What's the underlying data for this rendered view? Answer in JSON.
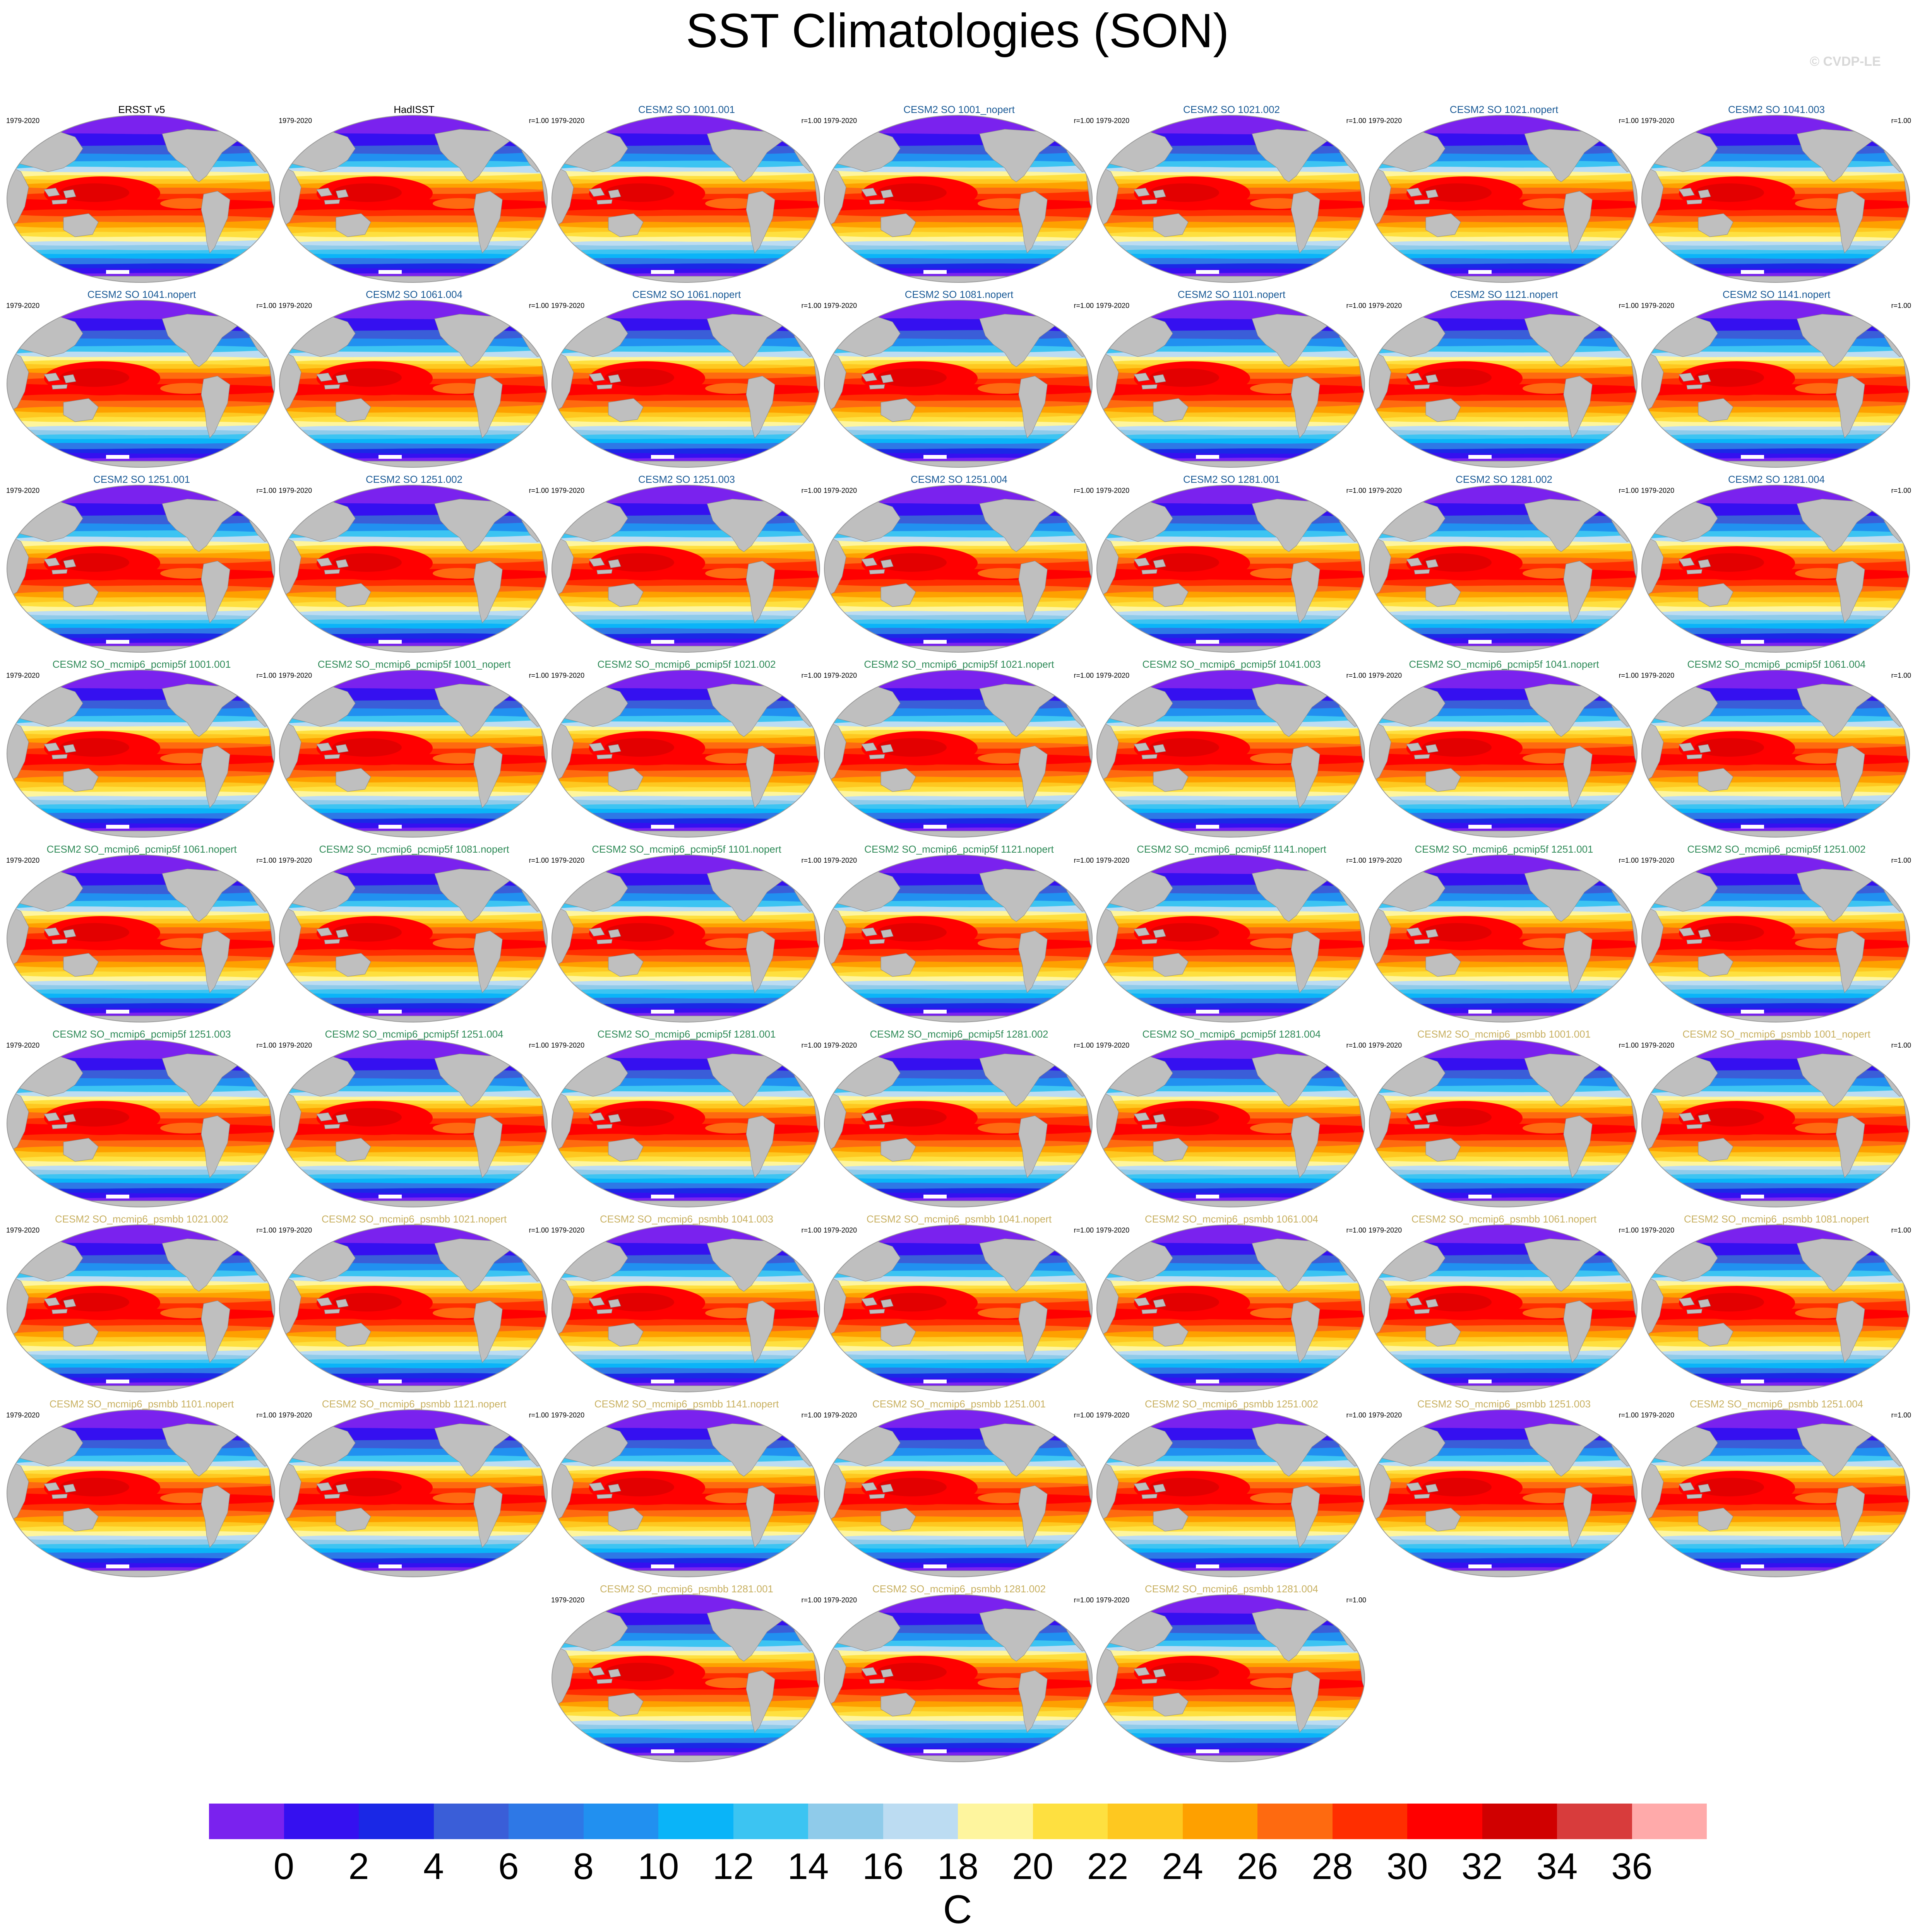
{
  "title": "SST Climatologies (SON)",
  "watermark": "© CVDP-LE",
  "period_label": "1979-2020",
  "corr_label": "r=1.00",
  "colors": {
    "obs_name": "#000000",
    "group1_name": "#1a5a96",
    "group2_name": "#2e8a57",
    "group3_name": "#c8b060",
    "land": "#bfbfbf",
    "ice": "#ffffff"
  },
  "panels": [
    {
      "name": "ERSST v5",
      "group": "obs",
      "corr": false
    },
    {
      "name": "HadISST",
      "group": "obs",
      "corr": true
    },
    {
      "name": "CESM2 SO 1001.001",
      "group": "group1",
      "corr": true
    },
    {
      "name": "CESM2 SO 1001_nopert",
      "group": "group1",
      "corr": true
    },
    {
      "name": "CESM2 SO 1021.002",
      "group": "group1",
      "corr": true
    },
    {
      "name": "CESM2 SO 1021.nopert",
      "group": "group1",
      "corr": true
    },
    {
      "name": "CESM2 SO 1041.003",
      "group": "group1",
      "corr": true
    },
    {
      "name": "CESM2 SO 1041.nopert",
      "group": "group1",
      "corr": true
    },
    {
      "name": "CESM2 SO 1061.004",
      "group": "group1",
      "corr": true
    },
    {
      "name": "CESM2 SO 1061.nopert",
      "group": "group1",
      "corr": true
    },
    {
      "name": "CESM2 SO 1081.nopert",
      "group": "group1",
      "corr": true
    },
    {
      "name": "CESM2 SO 1101.nopert",
      "group": "group1",
      "corr": true
    },
    {
      "name": "CESM2 SO 1121.nopert",
      "group": "group1",
      "corr": true
    },
    {
      "name": "CESM2 SO 1141.nopert",
      "group": "group1",
      "corr": true
    },
    {
      "name": "CESM2 SO 1251.001",
      "group": "group1",
      "corr": true
    },
    {
      "name": "CESM2 SO 1251.002",
      "group": "group1",
      "corr": true
    },
    {
      "name": "CESM2 SO 1251.003",
      "group": "group1",
      "corr": true
    },
    {
      "name": "CESM2 SO 1251.004",
      "group": "group1",
      "corr": true
    },
    {
      "name": "CESM2 SO 1281.001",
      "group": "group1",
      "corr": true
    },
    {
      "name": "CESM2 SO 1281.002",
      "group": "group1",
      "corr": true
    },
    {
      "name": "CESM2 SO 1281.004",
      "group": "group1",
      "corr": true
    },
    {
      "name": "CESM2 SO_mcmip6_pcmip5f 1001.001",
      "group": "group2",
      "corr": true
    },
    {
      "name": "CESM2 SO_mcmip6_pcmip5f 1001_nopert",
      "group": "group2",
      "corr": true
    },
    {
      "name": "CESM2 SO_mcmip6_pcmip5f 1021.002",
      "group": "group2",
      "corr": true
    },
    {
      "name": "CESM2 SO_mcmip6_pcmip5f 1021.nopert",
      "group": "group2",
      "corr": true
    },
    {
      "name": "CESM2 SO_mcmip6_pcmip5f 1041.003",
      "group": "group2",
      "corr": true
    },
    {
      "name": "CESM2 SO_mcmip6_pcmip5f 1041.nopert",
      "group": "group2",
      "corr": true
    },
    {
      "name": "CESM2 SO_mcmip6_pcmip5f 1061.004",
      "group": "group2",
      "corr": true
    },
    {
      "name": "CESM2 SO_mcmip6_pcmip5f 1061.nopert",
      "group": "group2",
      "corr": true
    },
    {
      "name": "CESM2 SO_mcmip6_pcmip5f 1081.nopert",
      "group": "group2",
      "corr": true
    },
    {
      "name": "CESM2 SO_mcmip6_pcmip5f 1101.nopert",
      "group": "group2",
      "corr": true
    },
    {
      "name": "CESM2 SO_mcmip6_pcmip5f 1121.nopert",
      "group": "group2",
      "corr": true
    },
    {
      "name": "CESM2 SO_mcmip6_pcmip5f 1141.nopert",
      "group": "group2",
      "corr": true
    },
    {
      "name": "CESM2 SO_mcmip6_pcmip5f 1251.001",
      "group": "group2",
      "corr": true
    },
    {
      "name": "CESM2 SO_mcmip6_pcmip5f 1251.002",
      "group": "group2",
      "corr": true
    },
    {
      "name": "CESM2 SO_mcmip6_pcmip5f 1251.003",
      "group": "group2",
      "corr": true
    },
    {
      "name": "CESM2 SO_mcmip6_pcmip5f 1251.004",
      "group": "group2",
      "corr": true
    },
    {
      "name": "CESM2 SO_mcmip6_pcmip5f 1281.001",
      "group": "group2",
      "corr": true
    },
    {
      "name": "CESM2 SO_mcmip6_pcmip5f 1281.002",
      "group": "group2",
      "corr": true
    },
    {
      "name": "CESM2 SO_mcmip6_pcmip5f 1281.004",
      "group": "group2",
      "corr": true
    },
    {
      "name": "CESM2 SO_mcmip6_psmbb 1001.001",
      "group": "group3",
      "corr": true
    },
    {
      "name": "CESM2 SO_mcmip6_psmbb 1001_nopert",
      "group": "group3",
      "corr": true
    },
    {
      "name": "CESM2 SO_mcmip6_psmbb 1021.002",
      "group": "group3",
      "corr": true
    },
    {
      "name": "CESM2 SO_mcmip6_psmbb 1021.nopert",
      "group": "group3",
      "corr": true
    },
    {
      "name": "CESM2 SO_mcmip6_psmbb 1041.003",
      "group": "group3",
      "corr": true
    },
    {
      "name": "CESM2 SO_mcmip6_psmbb 1041.nopert",
      "group": "group3",
      "corr": true
    },
    {
      "name": "CESM2 SO_mcmip6_psmbb 1061.004",
      "group": "group3",
      "corr": true
    },
    {
      "name": "CESM2 SO_mcmip6_psmbb 1061.nopert",
      "group": "group3",
      "corr": true
    },
    {
      "name": "CESM2 SO_mcmip6_psmbb 1081.nopert",
      "group": "group3",
      "corr": true
    },
    {
      "name": "CESM2 SO_mcmip6_psmbb 1101.nopert",
      "group": "group3",
      "corr": true
    },
    {
      "name": "CESM2 SO_mcmip6_psmbb 1121.nopert",
      "group": "group3",
      "corr": true
    },
    {
      "name": "CESM2 SO_mcmip6_psmbb 1141.nopert",
      "group": "group3",
      "corr": true
    },
    {
      "name": "CESM2 SO_mcmip6_psmbb 1251.001",
      "group": "group3",
      "corr": true
    },
    {
      "name": "CESM2 SO_mcmip6_psmbb 1251.002",
      "group": "group3",
      "corr": true
    },
    {
      "name": "CESM2 SO_mcmip6_psmbb 1251.003",
      "group": "group3",
      "corr": true
    },
    {
      "name": "CESM2 SO_mcmip6_psmbb 1251.004",
      "group": "group3",
      "corr": true
    },
    {
      "name": "CESM2 SO_mcmip6_psmbb 1281.001",
      "group": "group3",
      "corr": true
    },
    {
      "name": "CESM2 SO_mcmip6_psmbb 1281.002",
      "group": "group3",
      "corr": true
    },
    {
      "name": "CESM2 SO_mcmip6_psmbb 1281.004",
      "group": "group3",
      "corr": true
    }
  ],
  "chart_data": {
    "type": "heatmap",
    "variable": "SST",
    "season": "SON",
    "colorbar": {
      "unit": "C",
      "levels": [
        -1,
        1,
        3,
        5,
        7,
        9,
        11,
        13,
        15,
        17,
        19,
        21,
        23,
        25,
        27,
        29,
        31,
        33,
        35,
        37
      ],
      "tick_labels": [
        "0",
        "2",
        "4",
        "6",
        "8",
        "10",
        "12",
        "14",
        "16",
        "18",
        "20",
        "22",
        "24",
        "26",
        "28",
        "30",
        "32",
        "34",
        "36"
      ],
      "colors": [
        "#7a22ee",
        "#3510f0",
        "#1a28e6",
        "#3a5ed8",
        "#2e78e6",
        "#2190f0",
        "#0ab4f8",
        "#3cc4f2",
        "#8fcbea",
        "#bcdcf2",
        "#fef59e",
        "#fee040",
        "#fec820",
        "#fea000",
        "#fe6a10",
        "#ff2e00",
        "#ff0000",
        "#d00000",
        "#d83c3c",
        "#ffaaaa"
      ]
    }
  }
}
